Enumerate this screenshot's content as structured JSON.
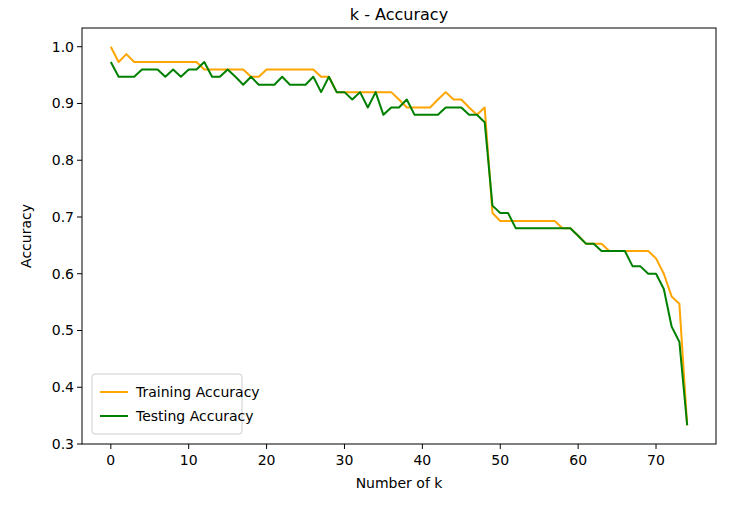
{
  "chart_data": {
    "type": "line",
    "title": "k - Accuracy",
    "x_label": "Number of k",
    "y_label": "Accuracy",
    "x": [
      0,
      1,
      2,
      3,
      4,
      5,
      6,
      7,
      8,
      9,
      10,
      11,
      12,
      13,
      14,
      15,
      16,
      17,
      18,
      19,
      20,
      21,
      22,
      23,
      24,
      25,
      26,
      27,
      28,
      29,
      30,
      31,
      32,
      33,
      34,
      35,
      36,
      37,
      38,
      39,
      40,
      41,
      42,
      43,
      44,
      45,
      46,
      47,
      48,
      49,
      50,
      51,
      52,
      53,
      54,
      55,
      56,
      57,
      58,
      59,
      60,
      61,
      62,
      63,
      64,
      65,
      66,
      67,
      68,
      69,
      70,
      71,
      72,
      73,
      74
    ],
    "series": [
      {
        "name": "Training Accuracy",
        "color": "#ffa500",
        "values": [
          1.0,
          0.973,
          0.987,
          0.973,
          0.973,
          0.973,
          0.973,
          0.973,
          0.973,
          0.973,
          0.973,
          0.973,
          0.96,
          0.96,
          0.96,
          0.96,
          0.96,
          0.96,
          0.947,
          0.947,
          0.96,
          0.96,
          0.96,
          0.96,
          0.96,
          0.96,
          0.96,
          0.947,
          0.947,
          0.92,
          0.92,
          0.92,
          0.92,
          0.92,
          0.92,
          0.92,
          0.92,
          0.907,
          0.893,
          0.893,
          0.893,
          0.893,
          0.907,
          0.92,
          0.907,
          0.907,
          0.893,
          0.88,
          0.893,
          0.707,
          0.693,
          0.693,
          0.693,
          0.693,
          0.693,
          0.693,
          0.693,
          0.693,
          0.68,
          0.68,
          0.667,
          0.653,
          0.653,
          0.653,
          0.64,
          0.64,
          0.64,
          0.64,
          0.64,
          0.64,
          0.627,
          0.6,
          0.56,
          0.547,
          0.333
        ]
      },
      {
        "name": "Testing Accuracy",
        "color": "#008000",
        "values": [
          0.973,
          0.947,
          0.947,
          0.947,
          0.96,
          0.96,
          0.96,
          0.947,
          0.96,
          0.947,
          0.96,
          0.96,
          0.973,
          0.947,
          0.947,
          0.96,
          0.947,
          0.933,
          0.947,
          0.933,
          0.933,
          0.933,
          0.947,
          0.933,
          0.933,
          0.933,
          0.947,
          0.92,
          0.947,
          0.92,
          0.92,
          0.907,
          0.92,
          0.893,
          0.92,
          0.88,
          0.893,
          0.893,
          0.907,
          0.88,
          0.88,
          0.88,
          0.88,
          0.893,
          0.893,
          0.893,
          0.88,
          0.88,
          0.867,
          0.72,
          0.707,
          0.707,
          0.68,
          0.68,
          0.68,
          0.68,
          0.68,
          0.68,
          0.68,
          0.68,
          0.667,
          0.653,
          0.653,
          0.64,
          0.64,
          0.64,
          0.64,
          0.613,
          0.613,
          0.6,
          0.6,
          0.573,
          0.507,
          0.48,
          0.333
        ]
      }
    ],
    "xlim": [
      -3.7,
      77.7
    ],
    "ylim": [
      0.3,
      1.033
    ],
    "xticks": [
      0,
      10,
      20,
      30,
      40,
      50,
      60,
      70
    ],
    "yticks": [
      0.3,
      0.4,
      0.5,
      0.6,
      0.7,
      0.8,
      0.9,
      {
        "value": 1,
        "label": "1.0"
      }
    ],
    "legend": "lower left",
    "grid": false
  }
}
